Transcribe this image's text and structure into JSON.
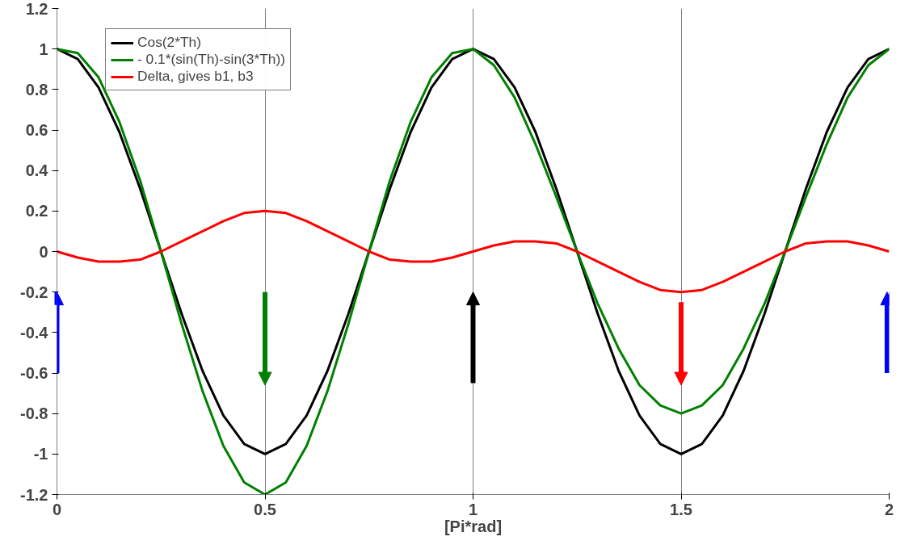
{
  "chart_data": {
    "type": "line",
    "xlabel": "[Pi*rad]",
    "x": [
      0,
      0.05,
      0.1,
      0.15,
      0.2,
      0.25,
      0.3,
      0.35,
      0.4,
      0.45,
      0.5,
      0.55,
      0.6,
      0.65,
      0.7,
      0.75,
      0.8,
      0.85,
      0.9,
      0.95,
      1,
      1.05,
      1.1,
      1.15,
      1.2,
      1.25,
      1.3,
      1.35,
      1.4,
      1.45,
      1.5,
      1.55,
      1.6,
      1.65,
      1.7,
      1.75,
      1.8,
      1.85,
      1.9,
      1.95,
      2
    ],
    "series": [
      {
        "name": "Cos(2*Th)",
        "color": "#000000",
        "values": [
          1,
          0.95,
          0.81,
          0.59,
          0.31,
          0,
          -0.31,
          -0.59,
          -0.81,
          -0.95,
          -1,
          -0.95,
          -0.81,
          -0.59,
          -0.31,
          0,
          0.31,
          0.59,
          0.81,
          0.95,
          1,
          0.95,
          0.81,
          0.59,
          0.31,
          0,
          -0.31,
          -0.59,
          -0.81,
          -0.95,
          -1,
          -0.95,
          -0.81,
          -0.59,
          -0.31,
          0,
          0.31,
          0.59,
          0.81,
          0.95,
          1
        ]
      },
      {
        "name": "- 0.1*(sin(Th)-sin(3*Th))",
        "color": "#008000",
        "values": [
          1,
          0.98,
          0.86,
          0.64,
          0.35,
          0,
          -0.36,
          -0.69,
          -0.96,
          -1.14,
          -1.2,
          -1.14,
          -0.96,
          -0.69,
          -0.36,
          0,
          0.35,
          0.64,
          0.86,
          0.98,
          1,
          0.92,
          0.76,
          0.53,
          0.27,
          0,
          -0.26,
          -0.48,
          -0.66,
          -0.76,
          -0.8,
          -0.76,
          -0.66,
          -0.48,
          -0.26,
          0,
          0.27,
          0.53,
          0.76,
          0.92,
          1
        ]
      },
      {
        "name": "Delta, gives b1, b3",
        "color": "#ff0000",
        "values": [
          0,
          -0.03,
          -0.05,
          -0.05,
          -0.04,
          0,
          0.05,
          0.1,
          0.15,
          0.19,
          0.2,
          0.19,
          0.15,
          0.1,
          0.05,
          0,
          -0.04,
          -0.05,
          -0.05,
          -0.03,
          0,
          0.03,
          0.05,
          0.05,
          0.04,
          0,
          -0.05,
          -0.1,
          -0.15,
          -0.19,
          -0.2,
          -0.19,
          -0.15,
          -0.1,
          -0.05,
          0,
          0.04,
          0.05,
          0.05,
          0.03,
          0
        ]
      }
    ],
    "xlim": [
      0,
      2
    ],
    "xticks": [
      0,
      0.5,
      1,
      1.5,
      2
    ],
    "ylim": [
      -1.2,
      1.2
    ],
    "yticks": [
      -1.2,
      -1,
      -0.8,
      -0.6,
      -0.4,
      -0.2,
      0,
      0.2,
      0.4,
      0.6,
      0.8,
      1,
      1.2
    ],
    "grid": "x",
    "legend": "top left",
    "marker": "none",
    "line_style": "solid"
  }
}
